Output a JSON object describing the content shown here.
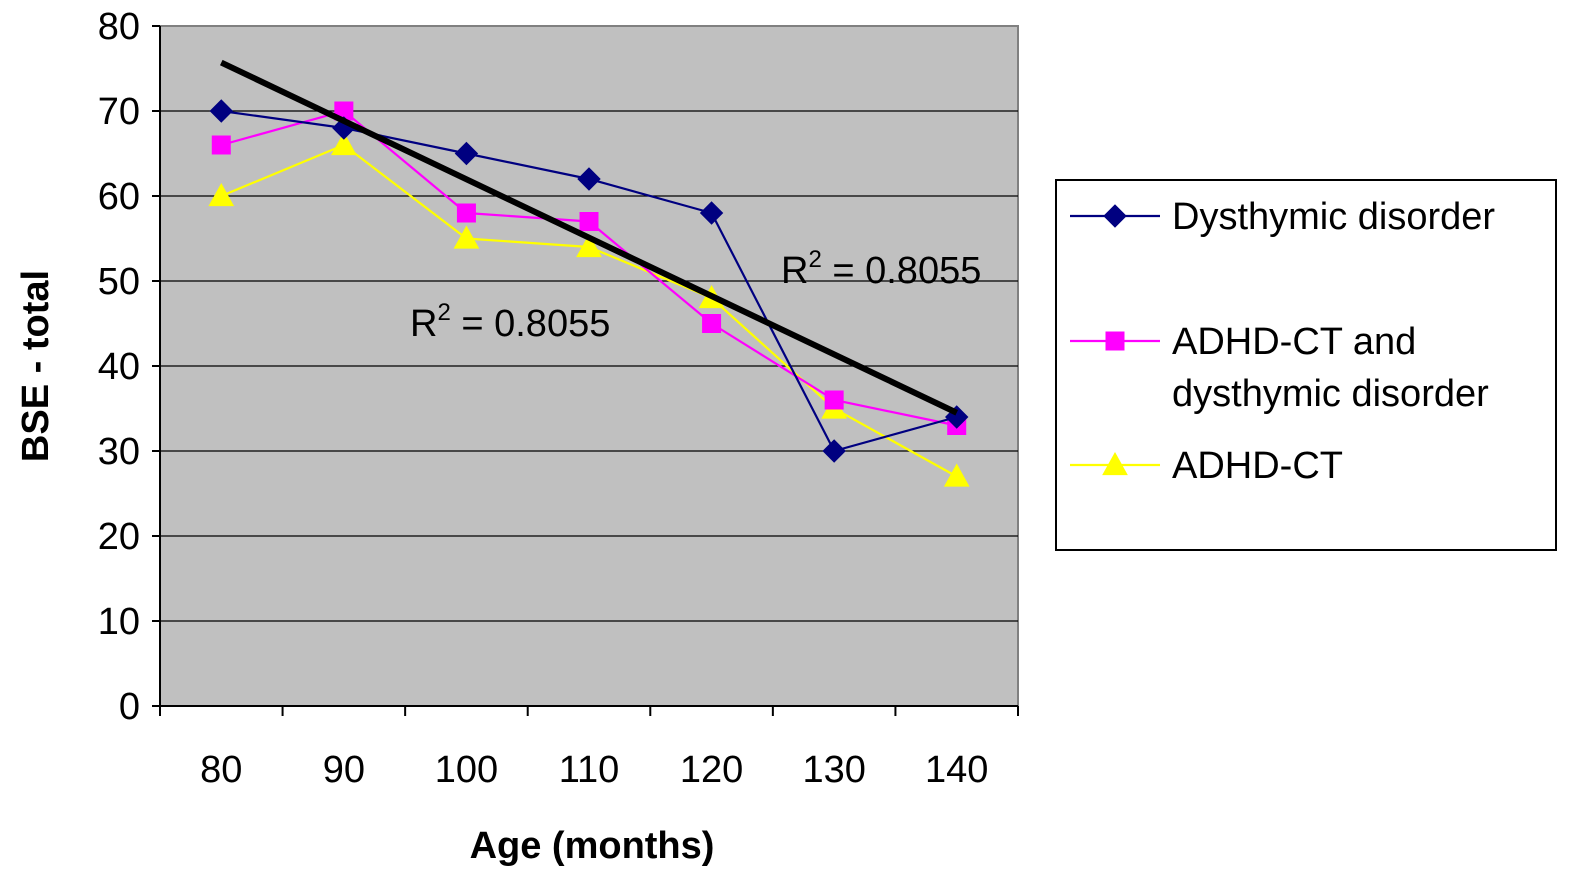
{
  "chart_data": {
    "type": "line",
    "xlabel": "Age (months)",
    "ylabel": "BSE - total",
    "categories": [
      "80",
      "90",
      "100",
      "110",
      "120",
      "130",
      "140"
    ],
    "ylim": [
      0,
      80
    ],
    "y_ticks": [
      "0",
      "10",
      "20",
      "30",
      "40",
      "50",
      "60",
      "70",
      "80"
    ],
    "grid": "horizontal",
    "legend_position": "right",
    "series": [
      {
        "name": "Dysthymic disorder",
        "values": [
          70,
          68,
          65,
          62,
          58,
          30,
          34
        ],
        "color": "#000080",
        "marker": "diamond"
      },
      {
        "name": "ADHD-CT and dysthymic disorder",
        "legend_lines": [
          "ADHD-CT and",
          "dysthymic disorder"
        ],
        "values": [
          66,
          70,
          58,
          57,
          45,
          36,
          33
        ],
        "color": "#FF00FF",
        "marker": "square"
      },
      {
        "name": "ADHD-CT",
        "values": [
          60,
          66,
          55,
          54,
          48,
          35,
          27
        ],
        "color": "#FFFF00",
        "marker": "triangle"
      }
    ],
    "trendline": {
      "type": "linear",
      "start": 75.7,
      "end": 34.5,
      "color": "#000000"
    },
    "annotations": [
      {
        "base": "R",
        "sup": "2",
        "rest": " = 0.8055"
      },
      {
        "base": "R",
        "sup": "2",
        "rest": " = 0.8055"
      }
    ],
    "plot_background": "#C0C0C0"
  }
}
